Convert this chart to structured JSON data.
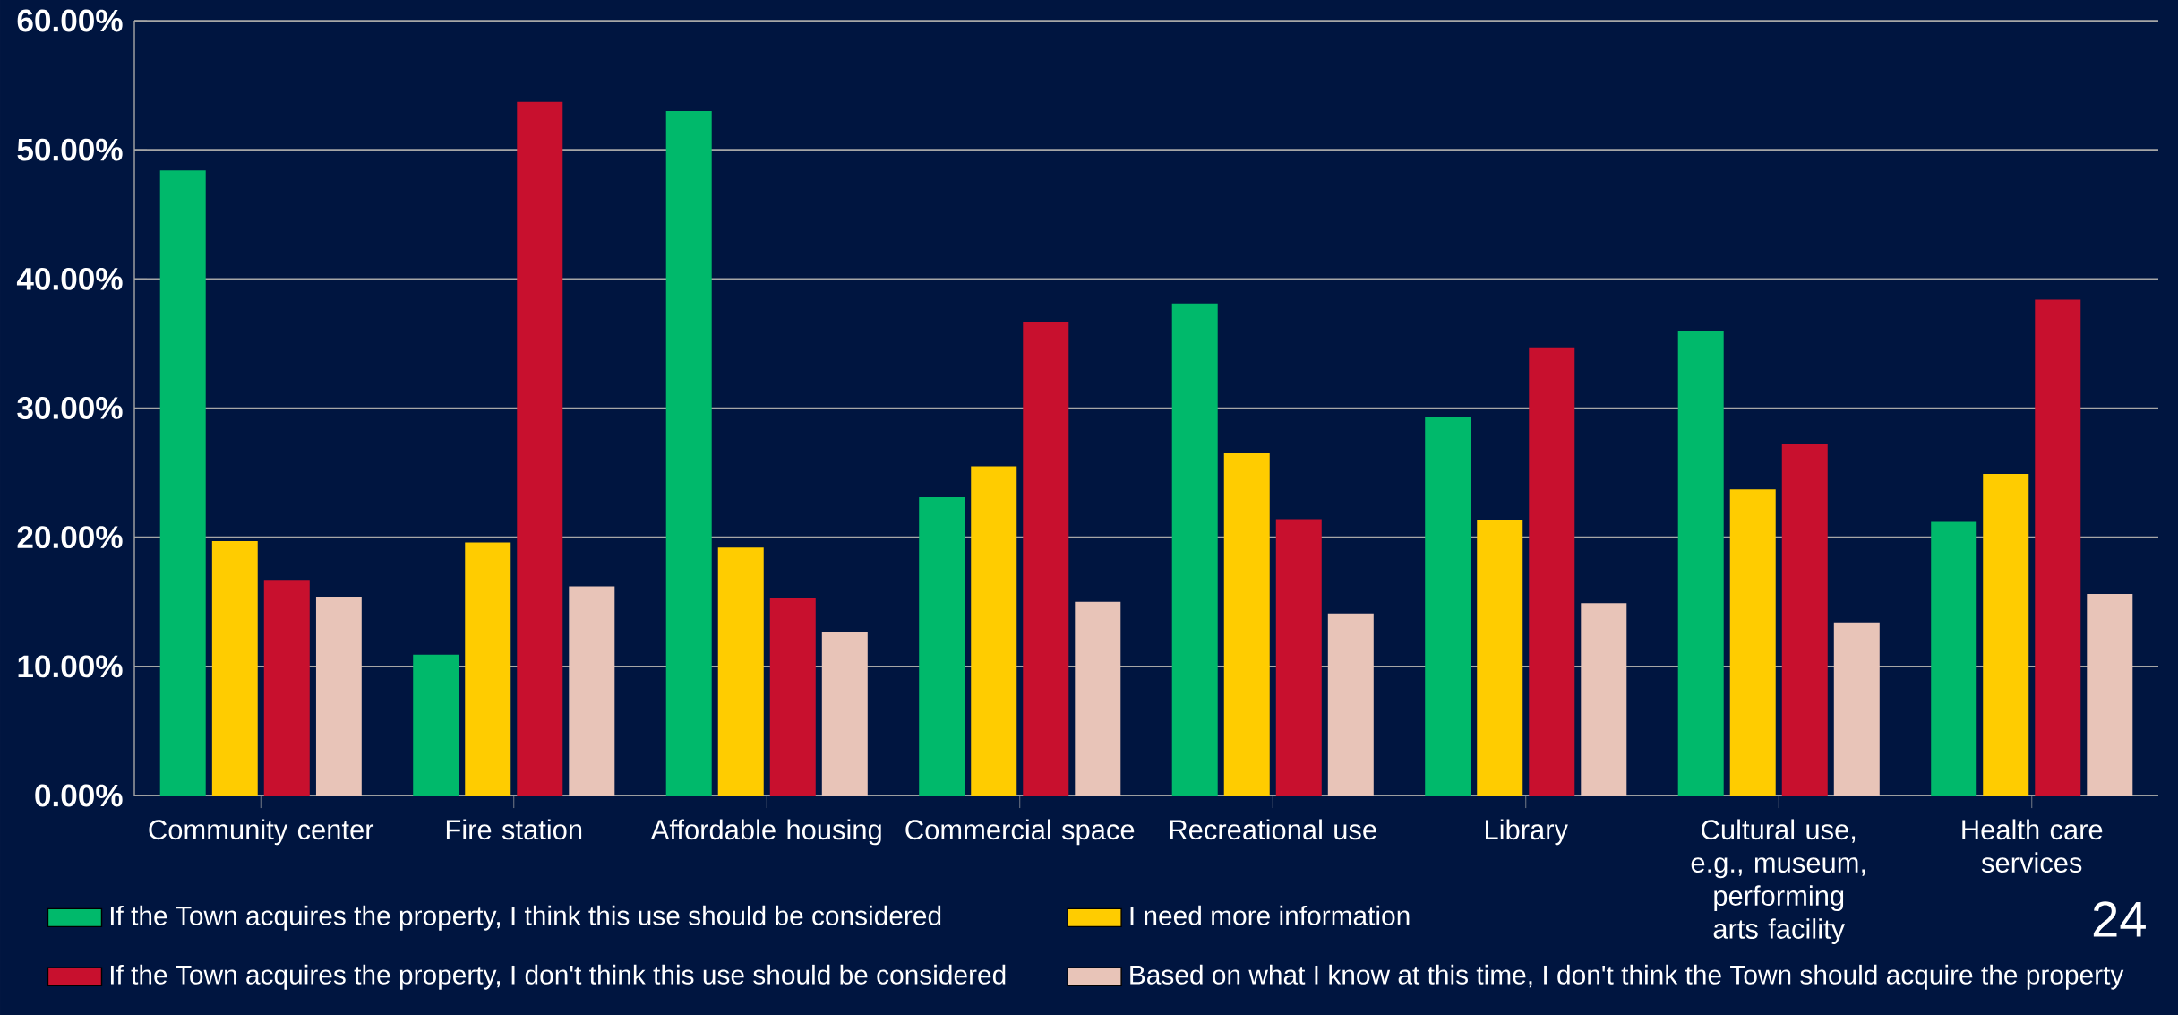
{
  "chart_data": {
    "type": "bar",
    "categories": [
      "Community center",
      "Fire station",
      "Affordable housing",
      "Commercial space",
      "Recreational use",
      "Library",
      "Cultural use, e.g., museum, performing arts facility",
      "Health care services"
    ],
    "series": [
      {
        "name": "If the Town acquires the property, I think this use should be considered",
        "color": "#00b96b",
        "values": [
          48.4,
          10.9,
          53.0,
          23.1,
          38.1,
          29.3,
          36.0,
          21.2
        ]
      },
      {
        "name": "I need more information",
        "color": "#ffcc00",
        "values": [
          19.7,
          19.6,
          19.2,
          25.5,
          26.5,
          21.3,
          23.7,
          24.9
        ]
      },
      {
        "name": "If the Town acquires the property, I don't think this use should be considered",
        "color": "#c8102e",
        "values": [
          16.7,
          53.7,
          15.3,
          36.7,
          21.4,
          34.7,
          27.2,
          38.4
        ]
      },
      {
        "name": "Based on what I know at this time, I don't think the Town should acquire the property",
        "color": "#e8c4b8",
        "values": [
          15.4,
          16.2,
          12.7,
          15.0,
          14.1,
          14.9,
          13.4,
          15.6
        ]
      }
    ],
    "ylim": [
      0,
      60
    ],
    "yticks": [
      {
        "value": 0,
        "label": "0.00%"
      },
      {
        "value": 10,
        "label": "10.00%"
      },
      {
        "value": 20,
        "label": "20.00%"
      },
      {
        "value": 30,
        "label": "30.00%"
      },
      {
        "value": 40,
        "label": "40.00%"
      },
      {
        "value": 50,
        "label": "50.00%"
      },
      {
        "value": 60,
        "label": "60.00%"
      }
    ],
    "grid": "y",
    "legend": "bottom",
    "annotations": [
      "24"
    ]
  }
}
